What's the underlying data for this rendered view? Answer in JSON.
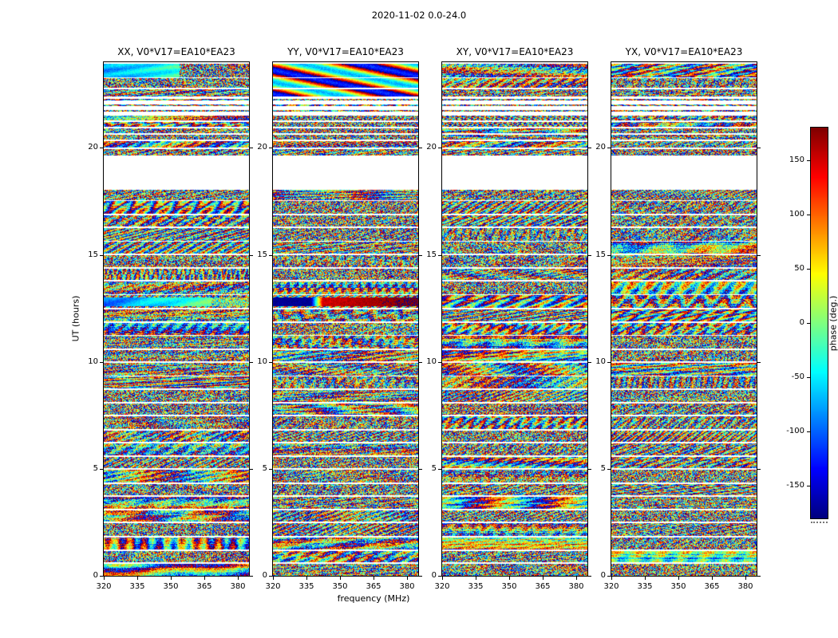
{
  "figure": {
    "title": "2020-11-02 0.0-24.0",
    "xlabel": "frequency (MHz)",
    "ylabel": "UT (hours)",
    "colorbar_label": "phase (deg.)"
  },
  "chart_data": {
    "type": "heatmap",
    "title": "2020-11-02 0.0-24.0",
    "xlabel": "frequency (MHz)",
    "ylabel": "UT (hours)",
    "xlim": [
      320,
      385
    ],
    "ylim": [
      0,
      24
    ],
    "x_ticks": [
      320,
      335,
      350,
      365,
      380
    ],
    "y_ticks": [
      0,
      5,
      10,
      15,
      20
    ],
    "panels": [
      {
        "id": "XX",
        "title": "XX, V0*V17=EA10*EA23"
      },
      {
        "id": "YY",
        "title": "YY, V0*V17=EA10*EA23"
      },
      {
        "id": "XY",
        "title": "XY, V0*V17=EA10*EA23"
      },
      {
        "id": "YX",
        "title": "YX, V0*V17=EA10*EA23"
      }
    ],
    "colorbar": {
      "label": "phase (deg.)",
      "ticks": [
        150,
        100,
        50,
        0,
        -50,
        -100,
        -150
      ],
      "vmin": -180,
      "vmax": 180,
      "colormap": "jet",
      "position": "right"
    },
    "values_note": "per-pixel interferometric visibility phase, pseudo-random speckle between -180 and +180 deg within each observing scan; white rows are gaps with no data",
    "scans_ut": [
      [
        0.0,
        0.55
      ],
      [
        0.62,
        1.15
      ],
      [
        1.22,
        1.8
      ],
      [
        1.87,
        2.45
      ],
      [
        2.52,
        3.05
      ],
      [
        3.12,
        3.7
      ],
      [
        3.77,
        4.3
      ],
      [
        4.37,
        4.95
      ],
      [
        5.02,
        5.55
      ],
      [
        5.62,
        6.2
      ],
      [
        6.27,
        6.8
      ],
      [
        6.87,
        7.45
      ],
      [
        7.52,
        8.05
      ],
      [
        8.12,
        8.7
      ],
      [
        8.77,
        9.3
      ],
      [
        9.37,
        9.95
      ],
      [
        10.02,
        10.55
      ],
      [
        10.62,
        11.2
      ],
      [
        11.27,
        11.8
      ],
      [
        11.87,
        12.45
      ],
      [
        12.52,
        13.1
      ],
      [
        13.17,
        13.75
      ],
      [
        13.82,
        14.35
      ],
      [
        14.42,
        15.0
      ],
      [
        15.07,
        15.6
      ],
      [
        15.67,
        16.25
      ],
      [
        16.32,
        16.85
      ],
      [
        16.92,
        17.5
      ],
      [
        17.57,
        18.05
      ],
      [
        19.65,
        19.95
      ],
      [
        20.02,
        20.3
      ],
      [
        20.38,
        20.6
      ],
      [
        20.68,
        20.9
      ],
      [
        20.98,
        21.2
      ],
      [
        21.28,
        21.5
      ],
      [
        21.7,
        21.78
      ],
      [
        21.96,
        22.04
      ],
      [
        22.22,
        22.3
      ],
      [
        22.4,
        22.72
      ],
      [
        22.8,
        23.24
      ],
      [
        23.3,
        23.93
      ]
    ],
    "major_gap_ut": [
      18.05,
      19.65
    ],
    "features": [
      {
        "panel": "XX",
        "ut": [
          12.58,
          13.02
        ],
        "style": "smooth-cyan-ramp",
        "desc": "coherent cyan-to-green phase band near UT 12.8"
      },
      {
        "panel": "YY",
        "ut": [
          12.58,
          13.02
        ],
        "style": "smooth-blue-red",
        "desc": "coherent band: dark blue at low frequency then saturated red"
      },
      {
        "panel": "XX",
        "ut": [
          23.3,
          23.93
        ],
        "style": "xx-top",
        "desc": "smooth cyan-green patch over the low-frequency half of the top scan"
      },
      {
        "panel": "YY",
        "ut": [
          22.4,
          23.93
        ],
        "style": "yy-top",
        "desc": "strong smooth red and blue patches in the top scans"
      }
    ]
  }
}
